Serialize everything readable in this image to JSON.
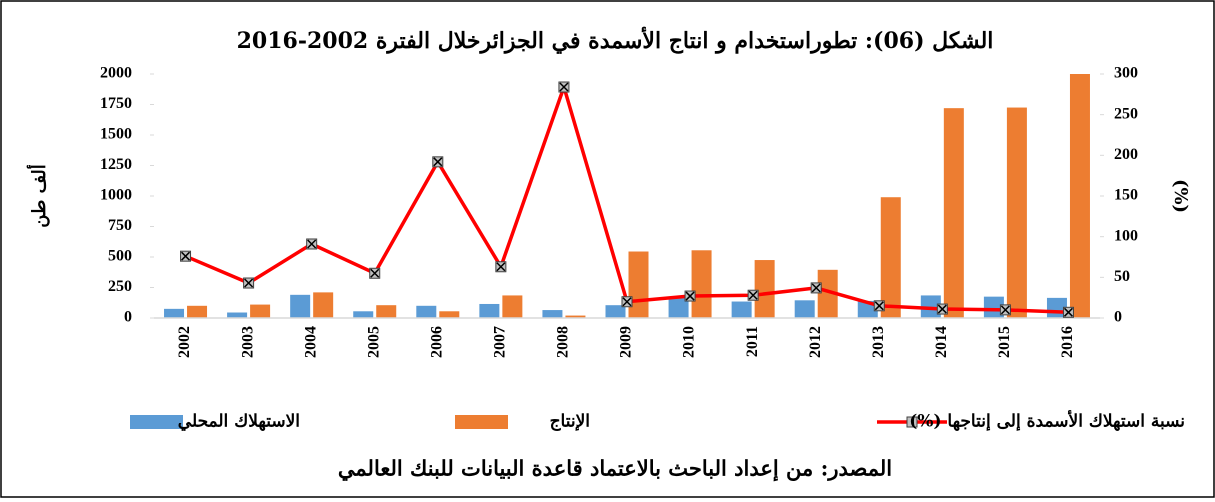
{
  "chart_data": {
    "type": "bar",
    "title": "الشكل (06): تطوراستخدام و انتاج الأسمدة في الجزائرخلال الفترة 2002-2016",
    "y_label": "ألف طن",
    "y2_label": "(%)",
    "source": "المصدر: من إعداد الباحث بالاعتماد قاعدة البيانات للبنك العالمي",
    "categories": [
      "2002",
      "2003",
      "2004",
      "2005",
      "2006",
      "2007",
      "2008",
      "2009",
      "2010",
      "2011",
      "2012",
      "2013",
      "2014",
      "2015",
      "2016"
    ],
    "series": [
      {
        "name": "الاستهلاك المحلي",
        "type": "bar",
        "color": "#5b9bd5",
        "values": [
          75,
          45,
          190,
          55,
          100,
          115,
          65,
          105,
          175,
          135,
          145,
          140,
          185,
          175,
          165
        ]
      },
      {
        "name": "الإنتاج",
        "type": "bar",
        "color": "#ed7d31",
        "values": [
          100,
          110,
          210,
          105,
          55,
          185,
          20,
          545,
          555,
          475,
          395,
          990,
          1720,
          1725,
          2000
        ]
      },
      {
        "name": "نسبة استهلاك الأسمدة إلى إنتاجها (%)",
        "type": "line",
        "axis": "y2",
        "color": "#ff0000",
        "values": [
          76,
          43,
          91,
          55,
          192,
          63,
          284,
          20,
          27,
          28,
          37,
          15,
          11,
          10,
          7
        ]
      }
    ],
    "ylim": [
      0,
      2000
    ],
    "yticks": [
      0,
      250,
      500,
      750,
      1000,
      1250,
      1500,
      1750,
      2000
    ],
    "y2lim": [
      0,
      300
    ],
    "y2ticks": [
      0,
      50,
      100,
      150,
      200,
      250,
      300
    ],
    "grid": false
  }
}
